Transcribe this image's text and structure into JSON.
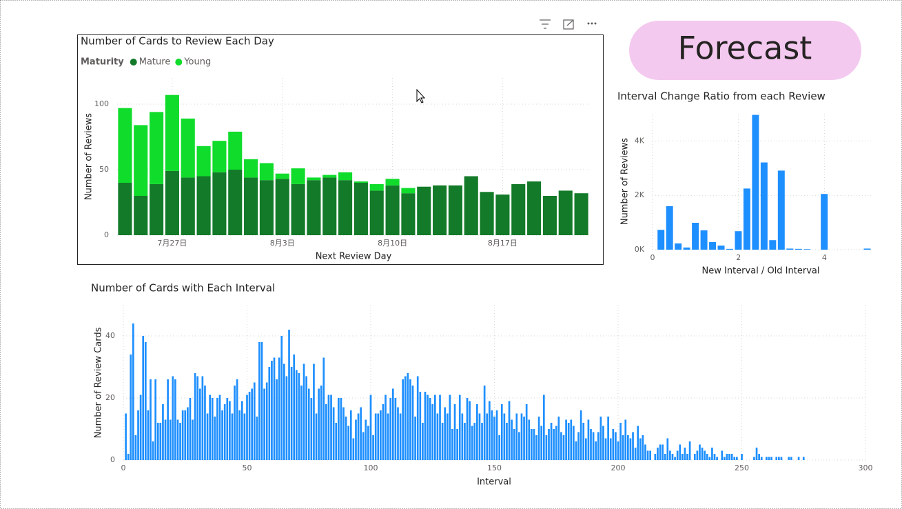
{
  "forecast_button": "Forecast",
  "chart_data": [
    {
      "type": "bar",
      "stacked": true,
      "title": "Number of Cards to Review Each Day",
      "legend_title": "Maturity",
      "x_label": "Next Review Day",
      "y_label": "Number of Reviews",
      "categories": [
        null,
        null,
        null,
        "7月27日",
        null,
        null,
        null,
        null,
        null,
        null,
        "8月3日",
        null,
        null,
        null,
        null,
        null,
        null,
        "8月10日",
        null,
        null,
        null,
        null,
        null,
        null,
        "8月17日",
        null,
        null,
        null,
        null,
        null
      ],
      "series": [
        {
          "name": "Mature",
          "color": "#127a28",
          "values": [
            40,
            30,
            39,
            49,
            44,
            45,
            48,
            50,
            44,
            42,
            43,
            39,
            42,
            44,
            42,
            40,
            34,
            38,
            32,
            37,
            38,
            38,
            45,
            33,
            31,
            39,
            41,
            30,
            34,
            32
          ]
        },
        {
          "name": "Young",
          "color": "#10dc2b",
          "values": [
            57,
            54,
            55,
            58,
            45,
            23,
            24,
            29,
            14,
            13,
            4,
            12,
            2,
            2,
            6,
            1,
            5,
            5,
            4,
            0,
            0,
            0,
            0,
            0,
            0,
            0,
            0,
            0,
            0,
            0
          ]
        }
      ],
      "ylim": [
        0,
        120
      ],
      "yticks": [
        0,
        50,
        100
      ],
      "grid": true
    },
    {
      "type": "histogram",
      "title": "Interval Change Ratio from each Review",
      "x_label": "New Interval / Old Interval",
      "y_label": "Number of Reviews",
      "bins": [
        0.1,
        0.3,
        0.5,
        0.7,
        0.9,
        1.1,
        1.3,
        1.5,
        1.7,
        1.9,
        2.1,
        2.3,
        2.5,
        2.7,
        2.9,
        3.1,
        3.3,
        3.5,
        3.7,
        3.9,
        4.1,
        4.3,
        4.5,
        4.7,
        4.9,
        5.1
      ],
      "values": [
        730,
        1600,
        230,
        80,
        990,
        710,
        280,
        150,
        30,
        680,
        2250,
        4960,
        3210,
        350,
        2910,
        40,
        30,
        20,
        0,
        2050,
        0,
        0,
        0,
        0,
        40
      ],
      "color": "#1e8fff",
      "xlim": [
        0,
        5.1
      ],
      "xticks": [
        0,
        2,
        4
      ],
      "ylim": [
        0,
        5000
      ],
      "yticks": [
        {
          "value": 0,
          "label": "0K"
        },
        {
          "value": 2000,
          "label": "2K"
        },
        {
          "value": 4000,
          "label": "4K"
        }
      ],
      "grid": true
    },
    {
      "type": "bar",
      "title": "Number of Cards with Each Interval",
      "x_label": "Interval",
      "y_label": "Number of Review Cards",
      "color": "#1e8fff",
      "x": [
        1,
        2,
        3,
        4,
        5,
        6,
        7,
        8,
        9,
        10,
        11,
        12,
        13,
        14,
        15,
        16,
        17,
        18,
        19,
        20,
        21,
        22,
        23,
        24,
        25,
        26,
        27,
        28,
        29,
        30,
        31,
        32,
        33,
        34,
        35,
        36,
        37,
        38,
        39,
        40,
        41,
        42,
        43,
        44,
        45,
        46,
        47,
        48,
        49,
        50,
        51,
        52,
        53,
        54,
        55,
        56,
        57,
        58,
        59,
        60,
        61,
        62,
        63,
        64,
        65,
        66,
        67,
        68,
        69,
        70,
        71,
        72,
        73,
        74,
        75,
        76,
        77,
        78,
        79,
        80,
        81,
        82,
        83,
        84,
        85,
        86,
        87,
        88,
        89,
        90,
        91,
        92,
        93,
        94,
        95,
        96,
        97,
        98,
        99,
        100,
        101,
        102,
        103,
        104,
        105,
        106,
        107,
        108,
        109,
        110,
        111,
        112,
        113,
        114,
        115,
        116,
        117,
        118,
        119,
        120,
        121,
        122,
        123,
        124,
        125,
        126,
        127,
        128,
        129,
        130,
        131,
        132,
        133,
        134,
        135,
        136,
        137,
        138,
        139,
        140,
        141,
        142,
        143,
        144,
        145,
        146,
        147,
        148,
        149,
        150,
        151,
        152,
        153,
        154,
        155,
        156,
        157,
        158,
        159,
        160,
        161,
        162,
        163,
        164,
        165,
        166,
        167,
        168,
        169,
        170,
        171,
        172,
        173,
        174,
        175,
        176,
        177,
        178,
        179,
        180,
        181,
        182,
        183,
        184,
        185,
        186,
        187,
        188,
        189,
        190,
        191,
        192,
        193,
        194,
        195,
        196,
        197,
        198,
        199,
        200,
        201,
        202,
        203,
        204,
        205,
        206,
        207,
        208,
        209,
        210,
        211,
        212,
        213,
        214,
        215,
        216,
        217,
        218,
        219,
        220,
        221,
        222,
        223,
        224,
        225,
        226,
        227,
        228,
        229,
        230,
        231,
        232,
        233,
        234,
        235,
        236,
        237,
        238,
        239,
        240,
        241,
        242,
        243,
        244,
        245,
        246,
        247,
        248,
        249,
        250,
        251,
        252,
        253,
        254,
        255,
        256,
        257,
        258,
        259,
        260,
        261,
        262,
        263,
        264,
        265,
        266,
        267,
        268,
        269,
        270,
        271,
        272,
        273,
        274,
        275
      ],
      "values": [
        15,
        2,
        34,
        44,
        8,
        16,
        21,
        40,
        38,
        16,
        26,
        6,
        26,
        12,
        12,
        18,
        13,
        26,
        13,
        27,
        26,
        13,
        12,
        16,
        16,
        17,
        20,
        13,
        28,
        27,
        23,
        27,
        24,
        15,
        21,
        20,
        14,
        20,
        21,
        16,
        18,
        20,
        19,
        15,
        24,
        26,
        16,
        19,
        15,
        21,
        22,
        23,
        25,
        14,
        38,
        38,
        23,
        25,
        30,
        32,
        33,
        26,
        33,
        40,
        31,
        27,
        42,
        30,
        34,
        29,
        28,
        24,
        31,
        27,
        23,
        20,
        31,
        15,
        23,
        24,
        33,
        18,
        21,
        21,
        17,
        12,
        20,
        20,
        17,
        14,
        11,
        16,
        7,
        13,
        15,
        17,
        9,
        13,
        11,
        21,
        8,
        15,
        15,
        16,
        18,
        21,
        15,
        20,
        23,
        20,
        17,
        15,
        26,
        27,
        28,
        26,
        24,
        14,
        27,
        22,
        12,
        22,
        21,
        20,
        18,
        21,
        15,
        21,
        12,
        17,
        15,
        21,
        10,
        18,
        10,
        21,
        15,
        12,
        20,
        19,
        11,
        12,
        18,
        15,
        12,
        24,
        15,
        19,
        16,
        14,
        16,
        8,
        18,
        15,
        12,
        19,
        13,
        10,
        15,
        9,
        15,
        14,
        18,
        13,
        10,
        10,
        8,
        14,
        11,
        21,
        8,
        10,
        12,
        10,
        11,
        14,
        9,
        8,
        13,
        12,
        13,
        11,
        6,
        9,
        16,
        12,
        7,
        13,
        10,
        9,
        6,
        9,
        14,
        11,
        7,
        14,
        7,
        10,
        9,
        6,
        12,
        8,
        13,
        8,
        7,
        9,
        4,
        11,
        7,
        8,
        5,
        3,
        3,
        0,
        2,
        4,
        5,
        5,
        2,
        7,
        3,
        2,
        1,
        3,
        5,
        2,
        4,
        2,
        6,
        0,
        2,
        3,
        5,
        4,
        3,
        2,
        1,
        4,
        2,
        1,
        0,
        3,
        1,
        2,
        2,
        2,
        1,
        1,
        0,
        2,
        0,
        0,
        0,
        0,
        1,
        4,
        2,
        1,
        0,
        1,
        1,
        1,
        0,
        1,
        1,
        1,
        0,
        0,
        1,
        1,
        0,
        0,
        1,
        0,
        1
      ],
      "xlim": [
        0,
        300
      ],
      "xticks": [
        0,
        50,
        100,
        150,
        200,
        250,
        300
      ],
      "ylim": [
        0,
        50
      ],
      "yticks": [
        0,
        20,
        40
      ],
      "grid": true
    }
  ]
}
